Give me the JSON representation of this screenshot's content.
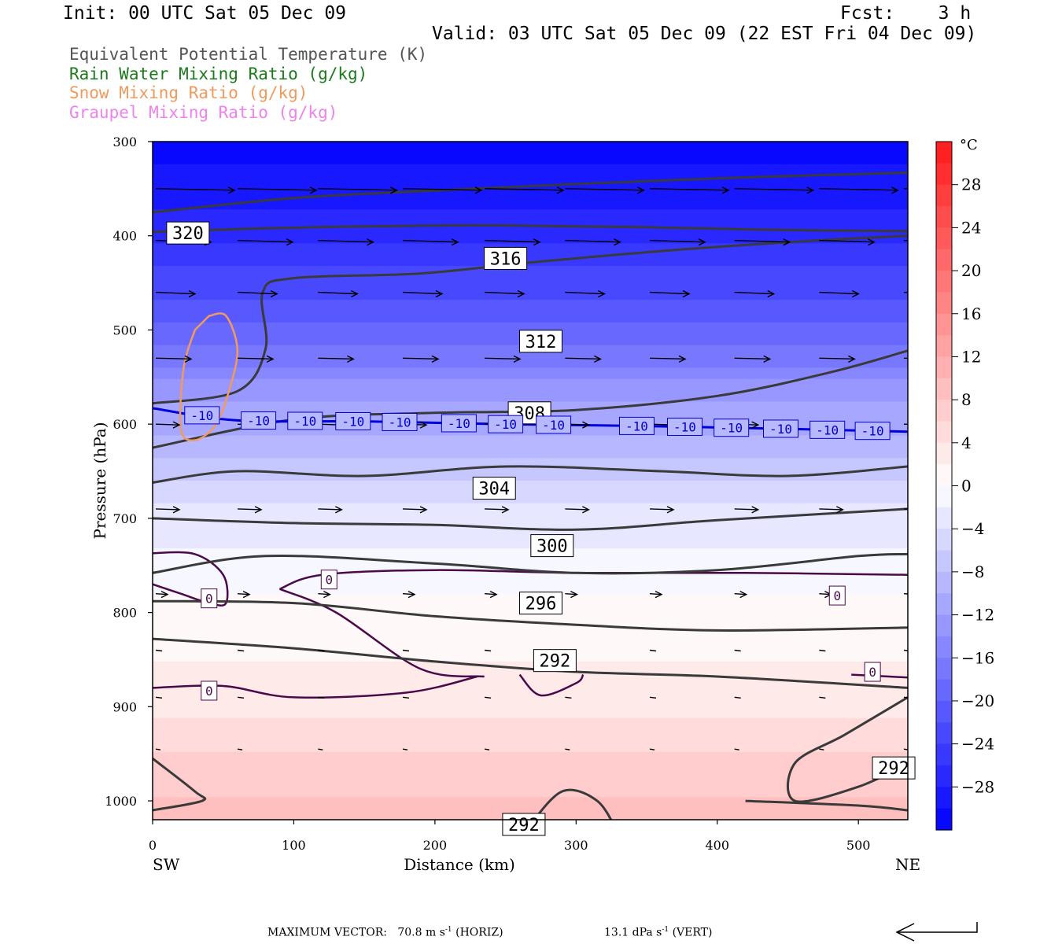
{
  "header": {
    "init": "Init: 00 UTC Sat 05 Dec 09",
    "fcst": "Fcst:    3 h",
    "valid": "Valid: 03 UTC Sat 05 Dec 09 (22 EST Fri 04 Dec 09)"
  },
  "fields": [
    {
      "label": "Equivalent Potential Temperature (K)",
      "color": "#555555"
    },
    {
      "label": "Rain Water Mixing Ratio (g/kg)",
      "color": "#1b7a1b"
    },
    {
      "label": "Snow Mixing Ratio (g/kg)",
      "color": "#f09a5e"
    },
    {
      "label": "Graupel Mixing Ratio (g/kg)",
      "color": "#ee82ee"
    }
  ],
  "footer": {
    "max_vector_label": "MAXIMUM VECTOR:",
    "horiz_value": "70.8 m s",
    "horiz_unit_tail": "(HORIZ)",
    "vert_value": "13.1 dPa s",
    "vert_unit_tail": "(VERT)",
    "exponent": "-1"
  },
  "chart_data": {
    "type": "cross-section contour",
    "xlabel": "Distance (km)",
    "ylabel": "Pressure (hPa)",
    "xlim": [
      0,
      535
    ],
    "ylim": [
      1020,
      300
    ],
    "x_ticks": [
      0,
      100,
      200,
      300,
      400,
      500
    ],
    "y_ticks": [
      300,
      400,
      500,
      600,
      700,
      800,
      900,
      1000
    ],
    "x_end_labels": {
      "left": "SW",
      "right": "NE"
    },
    "colorbar": {
      "unit": "°C",
      "ticks": [
        28,
        24,
        20,
        16,
        12,
        8,
        4,
        0,
        -4,
        -8,
        -12,
        -16,
        -20,
        -24,
        -28
      ],
      "range": [
        -32,
        32
      ],
      "warm_color": "#ff1a1a",
      "cold_color": "#0000ff"
    },
    "temperature_fill": [
      {
        "p": 300,
        "t": -31
      },
      {
        "p": 400,
        "t": -27
      },
      {
        "p": 500,
        "t": -19
      },
      {
        "p": 580,
        "t": -12
      },
      {
        "p": 700,
        "t": -3
      },
      {
        "p": 760,
        "t": -1
      },
      {
        "p": 800,
        "t": 1
      },
      {
        "p": 900,
        "t": 3
      },
      {
        "p": 950,
        "t": 6
      },
      {
        "p": 1000,
        "t": 8
      },
      {
        "p": 1020,
        "t": 9
      }
    ],
    "theta_e_contours": [
      {
        "label": "320",
        "label_pos": [
          25,
          397
        ],
        "points": [
          [
            0,
            396
          ],
          [
            60,
            393
          ],
          [
            150,
            390
          ],
          [
            250,
            389
          ],
          [
            350,
            391
          ],
          [
            450,
            394
          ],
          [
            535,
            395
          ]
        ]
      },
      {
        "label": "316",
        "label_pos": [
          250,
          424
        ],
        "points": [
          [
            0,
            375
          ],
          [
            100,
            360
          ],
          [
            200,
            352
          ],
          [
            300,
            345
          ],
          [
            420,
            338
          ],
          [
            535,
            333
          ]
        ]
      },
      {
        "label": "312",
        "label_pos": [
          275,
          512
        ],
        "points": [
          [
            0,
            578
          ],
          [
            60,
            565
          ],
          [
            80,
            520
          ],
          [
            78,
            460
          ],
          [
            100,
            445
          ],
          [
            190,
            440
          ],
          [
            270,
            428
          ],
          [
            370,
            415
          ],
          [
            470,
            405
          ],
          [
            535,
            400
          ]
        ]
      },
      {
        "label": "308",
        "label_pos": [
          267,
          588
        ],
        "points": [
          [
            0,
            625
          ],
          [
            100,
            595
          ],
          [
            200,
            588
          ],
          [
            300,
            585
          ],
          [
            400,
            570
          ],
          [
            480,
            545
          ],
          [
            535,
            522
          ]
        ]
      },
      {
        "label": "304",
        "label_pos": [
          242,
          668
        ],
        "points": [
          [
            0,
            662
          ],
          [
            60,
            650
          ],
          [
            150,
            655
          ],
          [
            250,
            645
          ],
          [
            360,
            650
          ],
          [
            450,
            655
          ],
          [
            535,
            645
          ]
        ]
      },
      {
        "label": "300",
        "label_pos": [
          283,
          729
        ],
        "points": [
          [
            0,
            700
          ],
          [
            100,
            705
          ],
          [
            200,
            707
          ],
          [
            300,
            712
          ],
          [
            400,
            702
          ],
          [
            535,
            690
          ]
        ]
      },
      {
        "label": "296",
        "label_pos": [
          275,
          790
        ],
        "points": [
          [
            0,
            758
          ],
          [
            80,
            740
          ],
          [
            200,
            748
          ],
          [
            300,
            758
          ],
          [
            400,
            755
          ],
          [
            500,
            740
          ],
          [
            535,
            738
          ]
        ]
      },
      {
        "label": "292",
        "label_pos": [
          285,
          851
        ],
        "points": [
          [
            0,
            788
          ],
          [
            100,
            790
          ],
          [
            200,
            804
          ],
          [
            300,
            813
          ],
          [
            400,
            819
          ],
          [
            535,
            816
          ]
        ]
      },
      {
        "label": "292",
        "label_pos": [
          525,
          965
        ],
        "points": [
          [
            0,
            828
          ],
          [
            100,
            838
          ],
          [
            200,
            852
          ],
          [
            300,
            863
          ],
          [
            400,
            868
          ],
          [
            535,
            880
          ]
        ]
      },
      {
        "label": "292",
        "label_pos": [
          263,
          1025
        ],
        "points": [
          [
            420,
            1000
          ],
          [
            500,
            1005
          ],
          [
            535,
            1010
          ]
        ]
      }
    ],
    "isotherm_minus10": {
      "labels_x": [
        35,
        75,
        108,
        142,
        175,
        217,
        250,
        284,
        343,
        377,
        410,
        445,
        478,
        510
      ],
      "label": "-10",
      "points": [
        [
          0,
          583
        ],
        [
          60,
          596
        ],
        [
          150,
          597
        ],
        [
          250,
          600
        ],
        [
          350,
          602
        ],
        [
          450,
          605
        ],
        [
          535,
          608
        ]
      ]
    },
    "zero_labels": [
      {
        "x": 125,
        "p": 765,
        "label": "0"
      },
      {
        "x": 40,
        "p": 785,
        "label": "0"
      },
      {
        "x": 485,
        "p": 782,
        "label": "0"
      },
      {
        "x": 40,
        "p": 883,
        "label": "0"
      },
      {
        "x": 510,
        "p": 863,
        "label": "0"
      }
    ],
    "snow_contour": {
      "color": "#f09a5e",
      "points": [
        [
          40,
          485
        ],
        [
          52,
          485
        ],
        [
          60,
          520
        ],
        [
          55,
          560
        ],
        [
          45,
          600
        ],
        [
          30,
          617
        ],
        [
          20,
          605
        ],
        [
          22,
          540
        ],
        [
          30,
          500
        ]
      ]
    },
    "wind_vectors": {
      "rows_p": [
        350,
        405,
        460,
        530,
        600,
        690,
        780,
        840,
        890,
        945
      ],
      "columns_x": [
        0,
        58,
        115,
        175,
        233,
        290,
        350,
        410,
        470,
        530
      ]
    },
    "max_vector": {
      "horizontal": "70.8 m s-1",
      "vertical": "13.1 dPa s-1"
    }
  }
}
